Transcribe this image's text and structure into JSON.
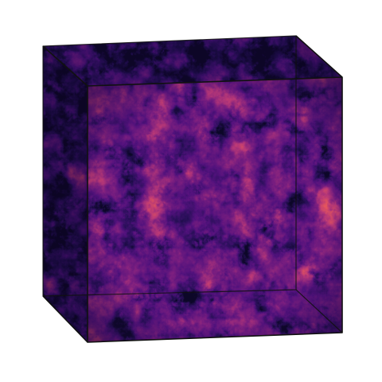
{
  "scene": {
    "background_color": "#ffffff",
    "subject": "volume-rendered-cube",
    "colormap": {
      "name": "magma",
      "stops": [
        "#0d0829",
        "#2a0f5a",
        "#51127c",
        "#7b1f7f",
        "#b73779",
        "#e2555f",
        "#f98a48",
        "#fec97e",
        "#fcfdbf"
      ]
    },
    "edge_color": "#111111"
  }
}
